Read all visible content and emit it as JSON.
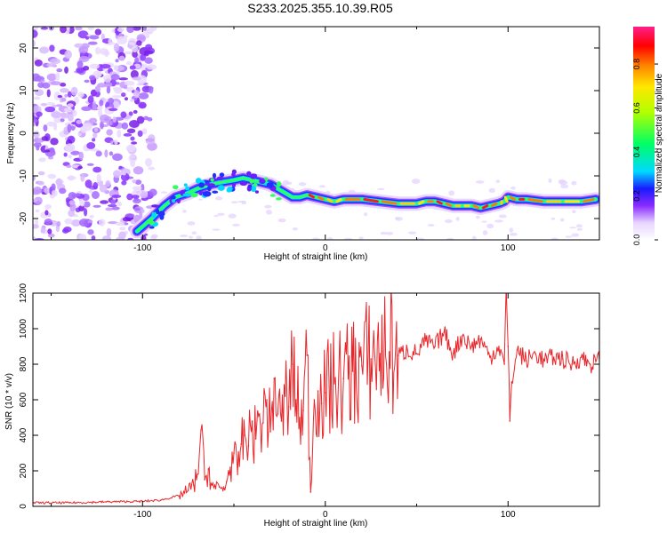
{
  "title": "S233.2025.355.10.39.R05",
  "chart_data": [
    {
      "type": "heatmap",
      "xlabel": "Height of straight line (km)",
      "ylabel": "Frequency (Hz)",
      "xlim": [
        -160,
        150
      ],
      "ylim": [
        -25,
        25
      ],
      "x_ticks": [
        -100,
        0,
        100
      ],
      "y_ticks": [
        20,
        10,
        0,
        -10,
        -20
      ],
      "colorbar": {
        "label": "Normalized spectral amplitude",
        "range": [
          0.0,
          0.97
        ],
        "ticks": [
          0.0,
          0.2,
          0.4,
          0.6,
          0.8
        ]
      },
      "ridge": {
        "name": "dominant frequency",
        "x": [
          -103,
          -95,
          -88,
          -82,
          -75,
          -70,
          -63,
          -57,
          -50,
          -45,
          -40,
          -35,
          -30,
          -26,
          -22,
          -18,
          -14,
          -10,
          -5,
          0,
          5,
          10,
          20,
          30,
          40,
          50,
          55,
          60,
          65,
          70,
          75,
          80,
          85,
          90,
          95,
          98,
          100,
          105,
          110,
          120,
          130,
          140,
          148
        ],
        "frequency": [
          -23,
          -20,
          -17,
          -15,
          -14,
          -13,
          -12,
          -11.5,
          -11,
          -10.5,
          -11,
          -11.5,
          -12,
          -13,
          -14,
          -15,
          -15,
          -14.5,
          -15,
          -15.5,
          -16,
          -15.5,
          -15.5,
          -16,
          -16.5,
          -16.5,
          -16,
          -16,
          -16.5,
          -17,
          -17,
          -17,
          -17.5,
          -17,
          -16.5,
          -16,
          -15,
          -15.5,
          -15.5,
          -16,
          -16,
          -16,
          -15.5
        ]
      },
      "noise_region_x": [
        -160,
        -100
      ]
    },
    {
      "type": "line",
      "xlabel": "Height of straight line (km)",
      "ylabel": "SNR (10 * v/v)",
      "xlim": [
        -160,
        150
      ],
      "ylim": [
        0,
        1200
      ],
      "x_ticks": [
        -100,
        0,
        100
      ],
      "y_ticks": [
        0,
        200,
        400,
        600,
        800,
        1000,
        1200
      ],
      "color": "#e8262a",
      "series": [
        {
          "name": "SNR",
          "x": [
            -160,
            -140,
            -120,
            -100,
            -90,
            -80,
            -75,
            -72,
            -70,
            -68,
            -66,
            -64,
            -62,
            -60,
            -58,
            -56,
            -54,
            -52,
            -50,
            -48,
            -46,
            -44,
            -42,
            -40,
            -38,
            -36,
            -34,
            -32,
            -30,
            -28,
            -26,
            -24,
            -22,
            -20,
            -18,
            -16,
            -14,
            -12,
            -10,
            -8,
            -6,
            -4,
            -2,
            0,
            5,
            10,
            15,
            20,
            25,
            30,
            35,
            40,
            45,
            50,
            55,
            60,
            65,
            70,
            75,
            80,
            85,
            90,
            95,
            98,
            99,
            100,
            101,
            102,
            105,
            110,
            115,
            120,
            125,
            130,
            135,
            140,
            145,
            150
          ],
          "values": [
            20,
            20,
            25,
            28,
            35,
            60,
            90,
            120,
            180,
            430,
            150,
            210,
            120,
            100,
            110,
            90,
            140,
            220,
            300,
            180,
            350,
            400,
            340,
            480,
            380,
            520,
            470,
            600,
            420,
            720,
            520,
            480,
            620,
            560,
            800,
            600,
            500,
            540,
            850,
            80,
            600,
            650,
            580,
            640,
            690,
            720,
            760,
            790,
            830,
            860,
            870,
            850,
            880,
            860,
            930,
            900,
            980,
            860,
            960,
            900,
            940,
            840,
            900,
            800,
            1240,
            900,
            480,
            700,
            880,
            820,
            860,
            820,
            840,
            830,
            800,
            840,
            800,
            820
          ]
        }
      ]
    }
  ]
}
